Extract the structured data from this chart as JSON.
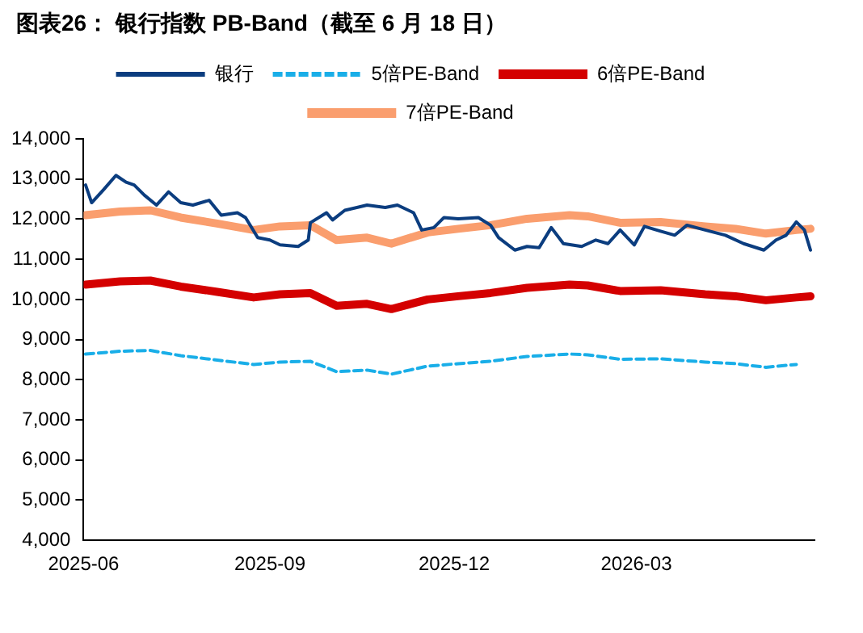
{
  "chart_data": {
    "type": "line",
    "title": "图表26：  银行指数 PB-Band（截至 6 月 18 日）",
    "xlim": [
      "2025-06-01",
      "2026-05-28"
    ],
    "xticks": [
      "2025-06",
      "2025-09",
      "2025-12",
      "2026-03"
    ],
    "ylim": [
      4000,
      14000
    ],
    "yticks": [
      {
        "value": 4000,
        "label": "4,000"
      },
      {
        "value": 5000,
        "label": "5,000"
      },
      {
        "value": 6000,
        "label": "6,000"
      },
      {
        "value": 7000,
        "label": "7,000"
      },
      {
        "value": 8000,
        "label": "8,000"
      },
      {
        "value": 9000,
        "label": "9,000"
      },
      {
        "value": 10000,
        "label": "10,000"
      },
      {
        "value": 11000,
        "label": "11,000"
      },
      {
        "value": 12000,
        "label": "12,000"
      },
      {
        "value": 13000,
        "label": "13,000"
      },
      {
        "value": 14000,
        "label": "14,000"
      }
    ],
    "grid": false,
    "legend": "top",
    "marker": "none",
    "series": [
      {
        "name": "银行",
        "color": "#0b3d7f",
        "line_style": "solid",
        "x": [
          "2025-06-02",
          "2025-06-05",
          "2025-06-11",
          "2025-06-17",
          "2025-06-22",
          "2025-06-26",
          "2025-07-01",
          "2025-07-07",
          "2025-07-13",
          "2025-07-19",
          "2025-07-25",
          "2025-08-02",
          "2025-08-08",
          "2025-08-16",
          "2025-08-20",
          "2025-08-26",
          "2025-09-01",
          "2025-09-06",
          "2025-09-15",
          "2025-09-20",
          "2025-09-21",
          "2025-09-29",
          "2025-10-02",
          "2025-10-08",
          "2025-10-19",
          "2025-10-28",
          "2025-11-03",
          "2025-11-11",
          "2025-11-15",
          "2025-11-21",
          "2025-11-26",
          "2025-12-03",
          "2025-12-13",
          "2025-12-19",
          "2025-12-23",
          "2025-12-31",
          "2026-01-06",
          "2026-01-12",
          "2026-01-18",
          "2026-01-24",
          "2026-02-02",
          "2026-02-09",
          "2026-02-15",
          "2026-02-21",
          "2026-02-28",
          "2026-03-05",
          "2026-03-13",
          "2026-03-20",
          "2026-03-26",
          "2026-04-04",
          "2026-04-14",
          "2026-04-23",
          "2026-05-03",
          "2026-05-09",
          "2026-05-14",
          "2026-05-19",
          "2026-05-23",
          "2026-05-26"
        ],
        "values": [
          12850,
          12410,
          12740,
          13090,
          12920,
          12850,
          12600,
          12350,
          12680,
          12410,
          12350,
          12470,
          12100,
          12160,
          12040,
          11540,
          11480,
          11360,
          11320,
          11480,
          11910,
          12160,
          11980,
          12220,
          12350,
          12290,
          12350,
          12160,
          11730,
          11790,
          12040,
          12010,
          12040,
          11850,
          11540,
          11230,
          11320,
          11290,
          11790,
          11390,
          11320,
          11480,
          11390,
          11730,
          11360,
          11820,
          11700,
          11600,
          11850,
          11730,
          11600,
          11390,
          11230,
          11480,
          11600,
          11930,
          11730,
          11230
        ]
      },
      {
        "name": "5倍PE-Band",
        "color": "#19aee8",
        "line_style": "dashed",
        "x": [
          "2025-06-02",
          "2025-06-19",
          "2025-07-04",
          "2025-07-19",
          "2025-08-06",
          "2025-08-24",
          "2025-09-06",
          "2025-09-21",
          "2025-10-04",
          "2025-10-19",
          "2025-10-31",
          "2025-11-18",
          "2025-12-03",
          "2025-12-19",
          "2026-01-06",
          "2026-01-27",
          "2026-02-05",
          "2026-02-21",
          "2026-03-13",
          "2026-04-04",
          "2026-04-19",
          "2026-05-04",
          "2026-05-19"
        ],
        "values": [
          8640,
          8710,
          8730,
          8600,
          8490,
          8380,
          8440,
          8460,
          8200,
          8240,
          8140,
          8340,
          8400,
          8460,
          8580,
          8640,
          8620,
          8510,
          8520,
          8440,
          8400,
          8310,
          8380
        ]
      },
      {
        "name": "6倍PE-Band",
        "color": "#d40000",
        "line_style": "solid",
        "x": [
          "2025-06-02",
          "2025-06-19",
          "2025-07-04",
          "2025-07-19",
          "2025-08-06",
          "2025-08-24",
          "2025-09-06",
          "2025-09-21",
          "2025-10-04",
          "2025-10-19",
          "2025-10-31",
          "2025-11-18",
          "2025-12-03",
          "2025-12-19",
          "2026-01-06",
          "2026-01-27",
          "2026-02-05",
          "2026-02-21",
          "2026-03-13",
          "2026-04-04",
          "2026-04-19",
          "2026-05-04",
          "2026-05-19",
          "2026-05-26"
        ],
        "values": [
          10370,
          10450,
          10470,
          10320,
          10190,
          10050,
          10130,
          10160,
          9840,
          9890,
          9760,
          10000,
          10080,
          10160,
          10290,
          10370,
          10350,
          10210,
          10230,
          10130,
          10080,
          9980,
          10050,
          10080
        ]
      },
      {
        "name": "7倍PE-Band",
        "color": "#fa9e6e",
        "line_style": "solid",
        "x": [
          "2025-06-02",
          "2025-06-19",
          "2025-07-04",
          "2025-07-19",
          "2025-08-06",
          "2025-08-24",
          "2025-09-06",
          "2025-09-21",
          "2025-10-04",
          "2025-10-19",
          "2025-10-31",
          "2025-11-18",
          "2025-12-03",
          "2025-12-19",
          "2026-01-06",
          "2026-01-27",
          "2026-02-05",
          "2026-02-21",
          "2026-03-13",
          "2026-04-04",
          "2026-04-19",
          "2026-05-04",
          "2026-05-19",
          "2026-05-26"
        ],
        "values": [
          12100,
          12190,
          12220,
          12040,
          11890,
          11730,
          11820,
          11850,
          11480,
          11540,
          11390,
          11670,
          11760,
          11850,
          12010,
          12100,
          12070,
          11910,
          11930,
          11820,
          11760,
          11640,
          11730,
          11760
        ]
      }
    ]
  }
}
